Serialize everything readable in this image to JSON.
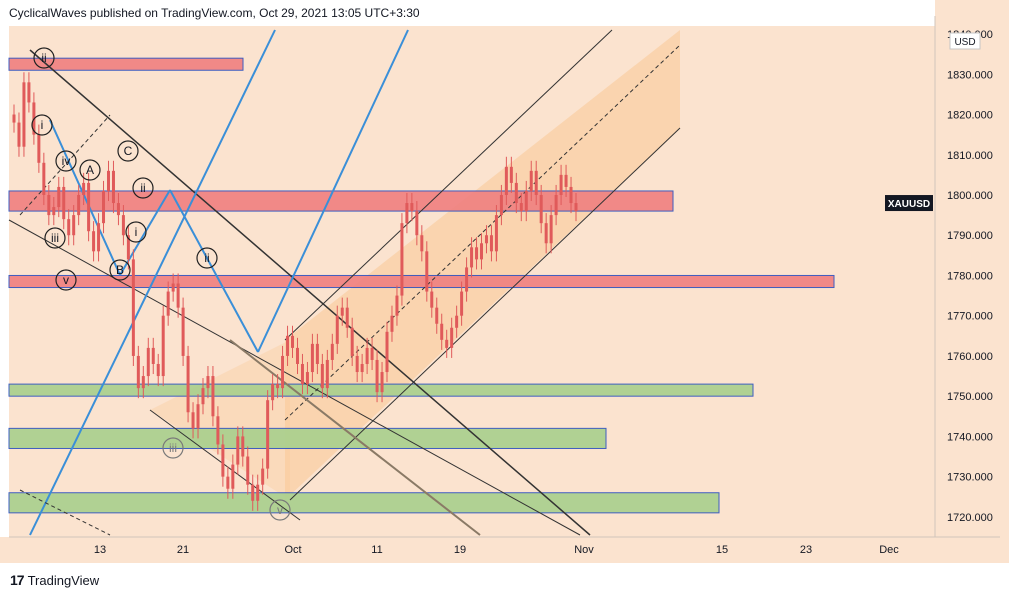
{
  "header": {
    "publish_line": "CyclicalWaves published on TradingView.com, Oct 29, 2021 13:05 UTC+3:30"
  },
  "footer": {
    "logo_glyph": "17",
    "brand": "TradingView"
  },
  "colors": {
    "background": "#fbe3cf",
    "up_candle": "#e05a5a",
    "resistance_zone": "#f08080",
    "support_zone": "#a8d08d",
    "zone_border": "#2a4fbf",
    "channel_fill": "#f9c896",
    "blue_line": "#3a8fd8",
    "dark_line": "#333333",
    "brown_line": "#8a7a66"
  },
  "chart_data": {
    "type": "candlestick",
    "symbol": "XAUUSD",
    "currency": "USD",
    "ylim": [
      1715,
      1842
    ],
    "y_ticks": [
      "1840.000",
      "1830.000",
      "1820.000",
      "1810.000",
      "1800.000",
      "1790.000",
      "1780.000",
      "1770.000",
      "1760.000",
      "1750.000",
      "1740.000",
      "1730.000",
      "1720.000"
    ],
    "x_ticks": [
      "13",
      "21",
      "Oct",
      "11",
      "19",
      "Nov",
      "15",
      "23",
      "Dec"
    ],
    "price_label": "XAUUSD",
    "close_series": [
      1818,
      1812,
      1828,
      1823,
      1815,
      1808,
      1800,
      1795,
      1797,
      1802,
      1794,
      1790,
      1795,
      1800,
      1803,
      1791,
      1786,
      1793,
      1801,
      1806,
      1798,
      1795,
      1790,
      1784,
      1760,
      1752,
      1755,
      1762,
      1758,
      1755,
      1770,
      1776,
      1778,
      1772,
      1760,
      1746,
      1742,
      1748,
      1752,
      1755,
      1745,
      1738,
      1730,
      1727,
      1733,
      1740,
      1735,
      1728,
      1724,
      1728,
      1732,
      1749,
      1753,
      1752,
      1760,
      1765,
      1762,
      1758,
      1753,
      1756,
      1763,
      1758,
      1752,
      1759,
      1763,
      1770,
      1772,
      1767,
      1760,
      1756,
      1758,
      1762,
      1759,
      1751,
      1756,
      1766,
      1770,
      1775,
      1793,
      1798,
      1796,
      1790,
      1786,
      1776,
      1772,
      1768,
      1764,
      1762,
      1767,
      1770,
      1776,
      1782,
      1787,
      1784,
      1788,
      1790,
      1786,
      1795,
      1800,
      1807,
      1803,
      1798,
      1796,
      1801,
      1806,
      1800,
      1793,
      1788,
      1795,
      1800,
      1805,
      1802,
      1798,
      1796
    ],
    "zones": [
      {
        "kind": "resistance",
        "label": "",
        "top": 1834,
        "bottom": 1831
      },
      {
        "kind": "resistance",
        "label": "",
        "top": 1801,
        "bottom": 1796
      },
      {
        "kind": "resistance",
        "label": "",
        "top": 1780,
        "bottom": 1777
      },
      {
        "kind": "support",
        "label": "",
        "top": 1753,
        "bottom": 1750
      },
      {
        "kind": "support",
        "label": "",
        "top": 1742,
        "bottom": 1737
      },
      {
        "kind": "support",
        "label": "",
        "top": 1726,
        "bottom": 1721
      }
    ],
    "wave_labels": [
      "ii",
      "i",
      "iv",
      "A",
      "C",
      "ii",
      "iii",
      "i",
      "B",
      "v",
      "ii",
      "iii",
      "v"
    ]
  }
}
